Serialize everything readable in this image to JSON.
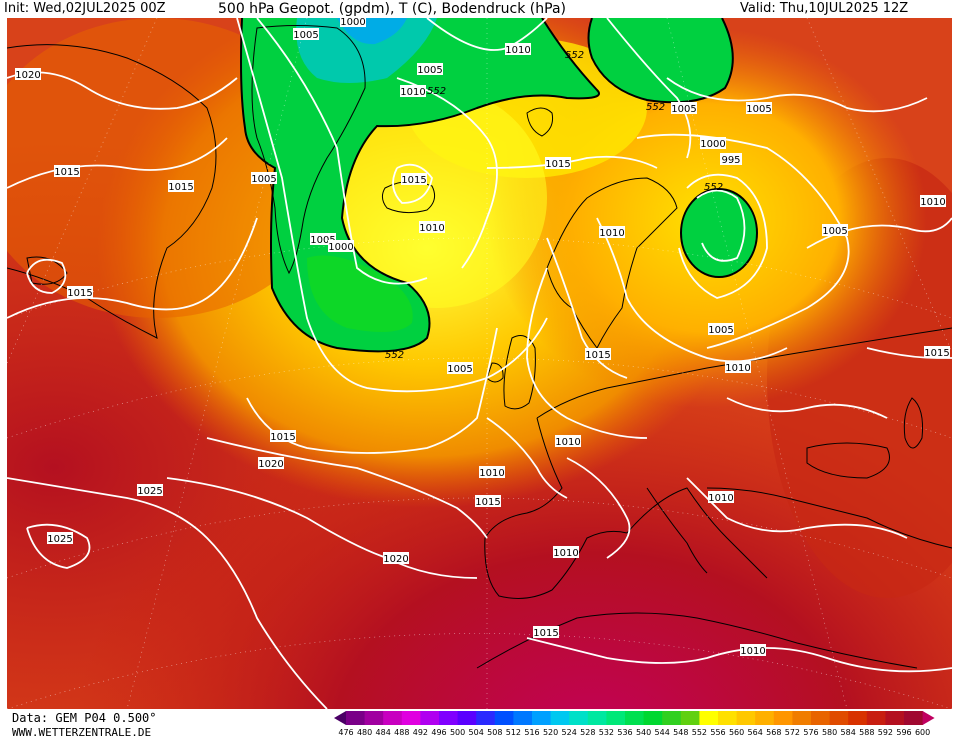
{
  "header": {
    "init": "Init: Wed,02JUL2025 00Z",
    "title": "500 hPa Geopot. (gpdm), T (C), Bodendruck (hPa)",
    "valid": "Valid: Thu,10JUL2025 12Z"
  },
  "footer": {
    "data_source": "Data: GEM P04 0.500°",
    "website": "WWW.WETTERZENTRALE.DE"
  },
  "colorbar": {
    "ticks": [
      "476",
      "480",
      "484",
      "488",
      "492",
      "496",
      "500",
      "504",
      "508",
      "512",
      "516",
      "520",
      "524",
      "528",
      "532",
      "536",
      "540",
      "544",
      "548",
      "552",
      "556",
      "560",
      "564",
      "568",
      "572",
      "576",
      "580",
      "584",
      "588",
      "592",
      "596",
      "600"
    ],
    "colors": [
      "#4b0066",
      "#7a0088",
      "#a000a0",
      "#c800c0",
      "#e000e0",
      "#b000f0",
      "#8000ff",
      "#5a00ff",
      "#2a2aff",
      "#0050ff",
      "#0078ff",
      "#00a0ff",
      "#00c8f0",
      "#00e0c8",
      "#00e8a0",
      "#00e878",
      "#00e050",
      "#00d830",
      "#30d020",
      "#60d010",
      "#ffff00",
      "#ffe000",
      "#ffc800",
      "#ffb000",
      "#ff9600",
      "#f07d00",
      "#e86400",
      "#e04b00",
      "#d83200",
      "#c81e10",
      "#b41020",
      "#a00830",
      "#c00060"
    ]
  },
  "isobars": [
    {
      "label": "1020",
      "pos": "nw-coast"
    },
    {
      "label": "1005",
      "pos": "greenland-north"
    },
    {
      "label": "1000",
      "pos": "greenland-top"
    },
    {
      "label": "1010",
      "pos": "svalbard"
    },
    {
      "label": "1005",
      "pos": "svalbard-east"
    },
    {
      "label": "1010",
      "pos": "greenland-mid"
    },
    {
      "label": "1015",
      "pos": "labrador"
    },
    {
      "label": "1015",
      "pos": "canada"
    },
    {
      "label": "1005",
      "pos": "greenland-west"
    },
    {
      "label": "1005",
      "pos": "iceland-lo"
    },
    {
      "label": "1000",
      "pos": "iceland-low"
    },
    {
      "label": "1015",
      "pos": "iceland"
    },
    {
      "label": "1010",
      "pos": "north-atlantic"
    },
    {
      "label": "1015",
      "pos": "norway-sea"
    },
    {
      "label": "1005",
      "pos": "barents"
    },
    {
      "label": "1000",
      "pos": "kola"
    },
    {
      "label": "995",
      "pos": "russia-low"
    },
    {
      "label": "1005",
      "pos": "urals"
    },
    {
      "label": "1010",
      "pos": "ne-russia"
    },
    {
      "label": "1010",
      "pos": "scandinavia"
    },
    {
      "label": "1005",
      "pos": "baltic"
    },
    {
      "label": "1015",
      "pos": "newfoundland"
    },
    {
      "label": "1015",
      "pos": "denmark"
    },
    {
      "label": "1010",
      "pos": "poland"
    },
    {
      "label": "1005",
      "pos": "east-edge"
    },
    {
      "label": "1005",
      "pos": "uk-west"
    },
    {
      "label": "1015",
      "pos": "mid-atlantic"
    },
    {
      "label": "1020",
      "pos": "azores-north"
    },
    {
      "label": "1010",
      "pos": "france"
    },
    {
      "label": "1010",
      "pos": "bay-biscay"
    },
    {
      "label": "1015",
      "pos": "iberia-west"
    },
    {
      "label": "1025",
      "pos": "azores"
    },
    {
      "label": "1025",
      "pos": "sw-atlantic"
    },
    {
      "label": "1020",
      "pos": "madeira"
    },
    {
      "label": "1010",
      "pos": "spain"
    },
    {
      "label": "1010",
      "pos": "balkans"
    },
    {
      "label": "1015",
      "pos": "algeria"
    },
    {
      "label": "1010",
      "pos": "libya"
    }
  ],
  "geopot_labels": [
    "552",
    "552",
    "552",
    "552",
    "552",
    "552"
  ]
}
